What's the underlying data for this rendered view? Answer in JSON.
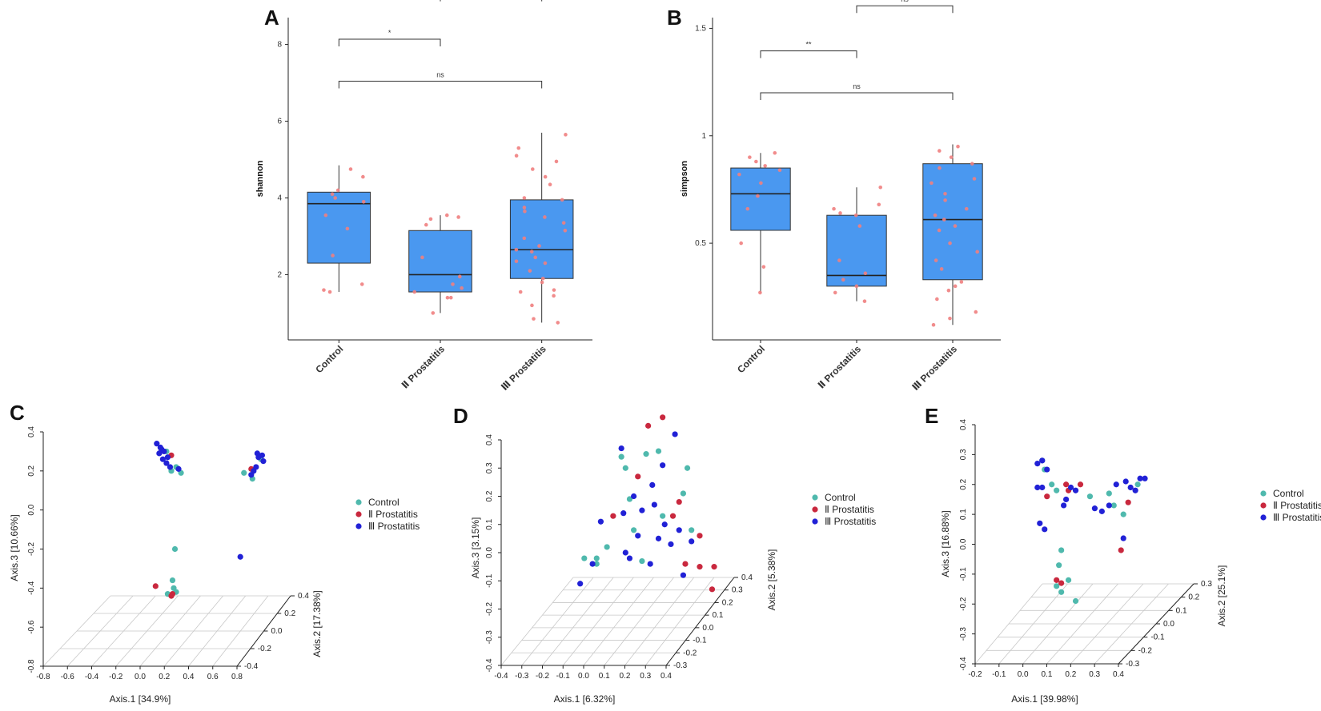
{
  "colors": {
    "box_fill": "#4a98f0",
    "jitter": "#f08080",
    "control": "#4fb9ad",
    "type_ii": "#c9283e",
    "type_iii": "#2121d6"
  },
  "chart_data": [
    {
      "panel": "A",
      "type": "box",
      "ylabel": "shannon",
      "categories": [
        "Control",
        "Ⅱ Prostatitis",
        "Ⅲ Prostatitis"
      ],
      "ylim": [
        0.3,
        8.7
      ],
      "yticks": [
        2,
        4,
        6,
        8
      ],
      "boxes": [
        {
          "q1": 2.3,
          "median": 3.85,
          "q3": 4.15,
          "whisker_low": 1.55,
          "whisker_high": 4.85
        },
        {
          "q1": 1.55,
          "median": 2.0,
          "q3": 3.15,
          "whisker_low": 1.0,
          "whisker_high": 3.55
        },
        {
          "q1": 1.9,
          "median": 2.65,
          "q3": 3.95,
          "whisker_low": 0.75,
          "whisker_high": 5.7
        }
      ],
      "points": [
        [
          1.55,
          1.6,
          1.75,
          2.5,
          3.2,
          3.55,
          3.9,
          4.0,
          4.1,
          4.2,
          4.55,
          4.75
        ],
        [
          1.0,
          1.4,
          1.4,
          1.55,
          1.65,
          1.75,
          1.95,
          2.45,
          3.3,
          3.45,
          3.5,
          3.55
        ],
        [
          0.75,
          0.85,
          1.2,
          1.45,
          1.55,
          1.6,
          1.8,
          1.9,
          2.1,
          2.3,
          2.35,
          2.45,
          2.6,
          2.65,
          2.75,
          2.95,
          3.15,
          3.35,
          3.5,
          3.65,
          3.75,
          3.95,
          4.0,
          4.35,
          4.55,
          4.75,
          4.95,
          5.1,
          5.3,
          5.65
        ]
      ],
      "comparisons": [
        {
          "pair": [
            0,
            1
          ],
          "label": "*"
        },
        {
          "pair": [
            1,
            2
          ],
          "label": "ns"
        },
        {
          "pair": [
            0,
            2
          ],
          "label": "ns"
        }
      ]
    },
    {
      "panel": "B",
      "type": "box",
      "ylabel": "simpson",
      "categories": [
        "Control",
        "Ⅱ Prostatitis",
        "Ⅲ Prostatitis"
      ],
      "ylim": [
        0.05,
        1.55
      ],
      "yticks": [
        0.5,
        1.0,
        1.5
      ],
      "boxes": [
        {
          "q1": 0.56,
          "median": 0.73,
          "q3": 0.85,
          "whisker_low": 0.27,
          "whisker_high": 0.92
        },
        {
          "q1": 0.3,
          "median": 0.35,
          "q3": 0.63,
          "whisker_low": 0.23,
          "whisker_high": 0.76
        },
        {
          "q1": 0.33,
          "median": 0.61,
          "q3": 0.87,
          "whisker_low": 0.12,
          "whisker_high": 0.96
        }
      ],
      "points": [
        [
          0.27,
          0.39,
          0.5,
          0.66,
          0.72,
          0.78,
          0.82,
          0.84,
          0.86,
          0.88,
          0.9,
          0.92
        ],
        [
          0.23,
          0.27,
          0.3,
          0.33,
          0.36,
          0.42,
          0.58,
          0.63,
          0.64,
          0.66,
          0.68,
          0.76
        ],
        [
          0.12,
          0.15,
          0.18,
          0.24,
          0.28,
          0.3,
          0.32,
          0.38,
          0.42,
          0.46,
          0.5,
          0.56,
          0.58,
          0.61,
          0.63,
          0.66,
          0.7,
          0.73,
          0.78,
          0.8,
          0.85,
          0.87,
          0.9,
          0.93,
          0.95
        ]
      ],
      "comparisons": [
        {
          "pair": [
            0,
            1
          ],
          "label": "**"
        },
        {
          "pair": [
            1,
            2
          ],
          "label": "ns"
        },
        {
          "pair": [
            0,
            2
          ],
          "label": "ns"
        }
      ]
    },
    {
      "panel": "C",
      "type": "scatter3d",
      "xlabel": "Axis.1 [34.9%]",
      "ylabel": "Axis.2 [17.38%]",
      "zlabel": "Axis.3 [10.66%]",
      "xticks": [
        "-0.8",
        "-0.6",
        "-0.4",
        "-0.2",
        "0.0",
        "0.2",
        "0.4",
        "0.6",
        "0.8"
      ],
      "yticks": [
        "-0.4",
        "-0.2",
        "0.0",
        "0.2",
        "0.4"
      ],
      "zticks": [
        "0.4",
        "0.2",
        "0.0",
        "-0.2",
        "-0.4",
        "-0.6",
        "-0.8"
      ],
      "zrange": [
        -0.8,
        0.4
      ],
      "legend": [
        "Control",
        "Ⅱ Prostatitis",
        "Ⅲ Prostatitis"
      ],
      "series": [
        {
          "name": "Control",
          "points": [
            [
              -0.02,
              0.2,
              0.2
            ],
            [
              0.02,
              0.2,
              0.22
            ],
            [
              0.06,
              0.2,
              0.19
            ],
            [
              -0.06,
              0.2,
              0.3
            ],
            [
              0.58,
              0.2,
              0.19
            ],
            [
              0.65,
              0.2,
              0.16
            ],
            [
              0.72,
              0.2,
              0.26
            ],
            [
              0.01,
              0.2,
              -0.2
            ],
            [
              -0.01,
              0.2,
              -0.36
            ],
            [
              -0.05,
              0.2,
              -0.43
            ],
            [
              0.02,
              0.2,
              -0.42
            ],
            [
              0.0,
              0.2,
              -0.4
            ]
          ]
        },
        {
          "name": "Ⅱ Prostatitis",
          "points": [
            [
              -0.02,
              0.2,
              0.28
            ],
            [
              0.64,
              0.2,
              0.21
            ],
            [
              -0.15,
              0.2,
              -0.39
            ],
            [
              -0.01,
              0.2,
              -0.43
            ],
            [
              -0.02,
              0.2,
              -0.44
            ]
          ]
        },
        {
          "name": "Ⅲ Prostatitis",
          "points": [
            [
              -0.14,
              0.2,
              0.34
            ],
            [
              -0.1,
              0.2,
              0.31
            ],
            [
              -0.12,
              0.2,
              0.29
            ],
            [
              -0.08,
              0.2,
              0.3
            ],
            [
              -0.05,
              0.2,
              0.27
            ],
            [
              -0.09,
              0.2,
              0.26
            ],
            [
              -0.06,
              0.2,
              0.24
            ],
            [
              -0.03,
              0.2,
              0.22
            ],
            [
              0.04,
              0.2,
              0.21
            ],
            [
              -0.11,
              0.2,
              0.32
            ],
            [
              0.69,
              0.2,
              0.29
            ],
            [
              0.73,
              0.2,
              0.28
            ],
            [
              0.7,
              0.2,
              0.27
            ],
            [
              0.74,
              0.2,
              0.25
            ],
            [
              0.68,
              0.2,
              0.22
            ],
            [
              0.66,
              0.2,
              0.2
            ],
            [
              0.64,
              0.2,
              0.18
            ],
            [
              0.55,
              0.2,
              -0.24
            ]
          ]
        }
      ]
    },
    {
      "panel": "D",
      "type": "scatter3d",
      "xlabel": "Axis.1 [6.32%]",
      "ylabel": "Axis.2 [5.38%]",
      "zlabel": "Axis.3 [3.15%]",
      "xticks": [
        "-0.4",
        "-0.3",
        "-0.2",
        "-0.1",
        "0.0",
        "0.1",
        "0.2",
        "0.3",
        "0.4"
      ],
      "yticks": [
        "-0.3",
        "-0.2",
        "-0.1",
        "0.0",
        "0.1",
        "0.2",
        "0.3",
        "0.4"
      ],
      "zticks": [
        "0.4",
        "0.3",
        "0.2",
        "0.1",
        "0.0",
        "-0.1",
        "-0.2",
        "-0.3",
        "-0.4"
      ],
      "zrange": [
        -0.4,
        0.4
      ],
      "legend": [
        "Control",
        "Ⅱ Prostatitis",
        "Ⅲ Prostatitis"
      ],
      "series": [
        {
          "name": "Control",
          "points": [
            [
              -0.16,
              0,
              -0.02
            ],
            [
              -0.1,
              0,
              -0.02
            ],
            [
              -0.05,
              0,
              0.02
            ],
            [
              0.02,
              0,
              0.34
            ],
            [
              0.04,
              0,
              0.3
            ],
            [
              0.14,
              0,
              0.35
            ],
            [
              0.2,
              0,
              0.36
            ],
            [
              0.34,
              0,
              0.3
            ],
            [
              0.06,
              0,
              0.19
            ],
            [
              0.32,
              0,
              0.21
            ],
            [
              0.08,
              0,
              0.08
            ],
            [
              0.22,
              0,
              0.13
            ],
            [
              0.36,
              0,
              0.08
            ],
            [
              0.12,
              0,
              -0.03
            ],
            [
              -0.1,
              0,
              -0.04
            ]
          ]
        },
        {
          "name": "Ⅱ Prostatitis",
          "points": [
            [
              0.15,
              0,
              0.45
            ],
            [
              0.22,
              0,
              0.48
            ],
            [
              0.1,
              0,
              0.27
            ],
            [
              0.3,
              0,
              0.18
            ],
            [
              -0.02,
              0,
              0.13
            ],
            [
              0.27,
              0,
              0.13
            ],
            [
              0.4,
              0,
              0.06
            ],
            [
              0.33,
              0,
              -0.04
            ],
            [
              0.4,
              0,
              -0.05
            ],
            [
              0.47,
              0,
              -0.05
            ],
            [
              0.46,
              0,
              -0.13
            ]
          ]
        },
        {
          "name": "Ⅲ Prostatitis",
          "points": [
            [
              -0.18,
              0,
              -0.11
            ],
            [
              -0.12,
              0,
              -0.04
            ],
            [
              -0.08,
              0,
              0.11
            ],
            [
              0.02,
              0,
              0.37
            ],
            [
              0.08,
              0,
              0.2
            ],
            [
              0.17,
              0,
              0.24
            ],
            [
              0.22,
              0,
              0.31
            ],
            [
              0.28,
              0,
              0.42
            ],
            [
              0.03,
              0,
              0.14
            ],
            [
              0.12,
              0,
              0.15
            ],
            [
              0.18,
              0,
              0.17
            ],
            [
              0.23,
              0,
              0.1
            ],
            [
              0.3,
              0,
              0.08
            ],
            [
              0.36,
              0,
              0.04
            ],
            [
              0.04,
              0,
              0.0
            ],
            [
              0.1,
              0,
              0.06
            ],
            [
              0.2,
              0,
              0.05
            ],
            [
              0.26,
              0,
              0.03
            ],
            [
              0.16,
              0,
              -0.04
            ],
            [
              0.32,
              0,
              -0.08
            ],
            [
              0.06,
              0,
              -0.02
            ]
          ]
        }
      ]
    },
    {
      "panel": "E",
      "type": "scatter3d",
      "xlabel": "Axis.1 [39.98%]",
      "ylabel": "Axis.2 [25.1%]",
      "zlabel": "Axis.3 [16.88%]",
      "xticks": [
        "-0.2",
        "-0.1",
        "0.0",
        "0.1",
        "0.2",
        "0.3",
        "0.4"
      ],
      "yticks": [
        "-0.3",
        "-0.2",
        "-0.1",
        "0.0",
        "0.1",
        "0.2",
        "0.3"
      ],
      "zticks": [
        "0.4",
        "0.3",
        "0.2",
        "0.1",
        "0.0",
        "-0.1",
        "-0.2",
        "-0.3",
        "-0.4"
      ],
      "zrange": [
        -0.4,
        0.4
      ],
      "legend": [
        "Control",
        "Ⅱ Prostatitis",
        "Ⅲ Prostatitis"
      ],
      "series": [
        {
          "name": "Control",
          "points": [
            [
              -0.06,
              0,
              0.28
            ],
            [
              -0.05,
              0,
              0.25
            ],
            [
              -0.02,
              0,
              0.2
            ],
            [
              0.0,
              0,
              0.18
            ],
            [
              0.14,
              0,
              0.16
            ],
            [
              0.24,
              0,
              0.13
            ],
            [
              0.22,
              0,
              0.17
            ],
            [
              0.28,
              0,
              0.1
            ],
            [
              0.34,
              0,
              0.2
            ],
            [
              0.01,
              0,
              -0.07
            ],
            [
              0.02,
              0,
              -0.02
            ],
            [
              0.05,
              0,
              -0.12
            ],
            [
              0.0,
              0,
              -0.14
            ],
            [
              0.02,
              0,
              -0.16
            ],
            [
              0.08,
              0,
              -0.19
            ]
          ]
        },
        {
          "name": "Ⅱ Prostatitis",
          "points": [
            [
              0.04,
              0,
              0.2
            ],
            [
              0.05,
              0,
              0.18
            ],
            [
              0.1,
              0,
              0.2
            ],
            [
              0.3,
              0,
              0.14
            ],
            [
              -0.04,
              0,
              0.16
            ],
            [
              0.27,
              0,
              -0.02
            ],
            [
              0.0,
              0,
              -0.12
            ],
            [
              0.02,
              0,
              -0.13
            ]
          ]
        },
        {
          "name": "Ⅲ Prostatitis",
          "points": [
            [
              -0.08,
              0,
              0.27
            ],
            [
              -0.06,
              0,
              0.28
            ],
            [
              -0.04,
              0,
              0.25
            ],
            [
              -0.08,
              0,
              0.19
            ],
            [
              -0.06,
              0,
              0.19
            ],
            [
              -0.07,
              0,
              0.07
            ],
            [
              -0.05,
              0,
              0.05
            ],
            [
              0.06,
              0,
              0.19
            ],
            [
              0.08,
              0,
              0.18
            ],
            [
              0.04,
              0,
              0.15
            ],
            [
              0.03,
              0,
              0.13
            ],
            [
              0.16,
              0,
              0.12
            ],
            [
              0.19,
              0,
              0.11
            ],
            [
              0.22,
              0,
              0.13
            ],
            [
              0.25,
              0,
              0.2
            ],
            [
              0.29,
              0,
              0.21
            ],
            [
              0.31,
              0,
              0.19
            ],
            [
              0.33,
              0,
              0.18
            ],
            [
              0.35,
              0,
              0.22
            ],
            [
              0.37,
              0,
              0.22
            ],
            [
              0.28,
              0,
              0.02
            ]
          ]
        }
      ]
    }
  ]
}
